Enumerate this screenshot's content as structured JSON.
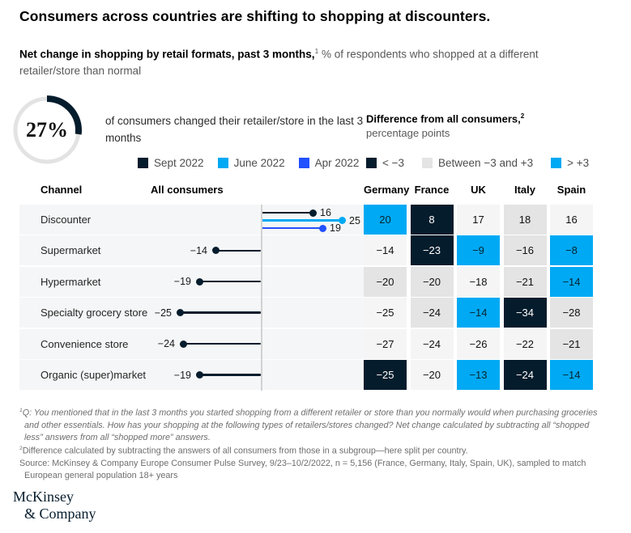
{
  "header": {
    "title": "Consumers across countries are shifting to shopping at discounters.",
    "subtitle_bold": "Net change in shopping by retail formats, past 3 months,",
    "subtitle_sup": "1",
    "subtitle_rest": " % of respondents who shopped at a different retailer/store than normal"
  },
  "stat": {
    "value": "27%",
    "fraction": 0.27,
    "description": "of consumers changed their retailer/store in the last 3 months"
  },
  "series_legend": [
    {
      "label": "Sept 2022",
      "color": "#051C2C"
    },
    {
      "label": "June 2022",
      "color": "#00A9F4"
    },
    {
      "label": "Apr 2022",
      "color": "#2251FF"
    }
  ],
  "diff_legend": {
    "title": "Difference from all consumers,",
    "sup": "2",
    "unit": "percentage points",
    "items": [
      {
        "label": "< −3",
        "color": "#051C2C"
      },
      {
        "label": "Between −3 and +3",
        "color": "#E4E4E4"
      },
      {
        "label": "> +3",
        "color": "#00A9F4"
      }
    ]
  },
  "table": {
    "headers": {
      "channel": "Channel",
      "all_consumers": "All consumers"
    },
    "countries": [
      "Germany",
      "France",
      "UK",
      "Italy",
      "Spain"
    ],
    "rows": [
      {
        "channel": "Discounter",
        "lollipops": [
          {
            "series": "Sept 2022",
            "value": 16,
            "color": "#051C2C"
          },
          {
            "series": "June 2022",
            "value": 25,
            "color": "#00A9F4"
          },
          {
            "series": "Apr 2022",
            "value": 19,
            "color": "#2251FF"
          }
        ],
        "cells": [
          {
            "value": "20",
            "tone": "blue"
          },
          {
            "value": "8",
            "tone": "dark"
          },
          {
            "value": "17",
            "tone": "light"
          },
          {
            "value": "18",
            "tone": "gray"
          },
          {
            "value": "16",
            "tone": "light"
          }
        ]
      },
      {
        "channel": "Supermarket",
        "lollipops": [
          {
            "series": "Sept 2022",
            "value": -14,
            "color": "#051C2C"
          }
        ],
        "cells": [
          {
            "value": "−14",
            "tone": "light"
          },
          {
            "value": "−23",
            "tone": "dark"
          },
          {
            "value": "−9",
            "tone": "blue"
          },
          {
            "value": "−16",
            "tone": "gray"
          },
          {
            "value": "−8",
            "tone": "blue"
          }
        ]
      },
      {
        "channel": "Hypermarket",
        "lollipops": [
          {
            "series": "Sept 2022",
            "value": -19,
            "color": "#051C2C"
          }
        ],
        "cells": [
          {
            "value": "−20",
            "tone": "gray"
          },
          {
            "value": "−20",
            "tone": "gray"
          },
          {
            "value": "−18",
            "tone": "light"
          },
          {
            "value": "−21",
            "tone": "gray"
          },
          {
            "value": "−14",
            "tone": "blue"
          }
        ]
      },
      {
        "channel": "Specialty grocery store",
        "lollipops": [
          {
            "series": "Sept 2022",
            "value": -25,
            "color": "#051C2C"
          }
        ],
        "cells": [
          {
            "value": "−25",
            "tone": "light"
          },
          {
            "value": "−24",
            "tone": "gray"
          },
          {
            "value": "−14",
            "tone": "blue"
          },
          {
            "value": "−34",
            "tone": "dark"
          },
          {
            "value": "−28",
            "tone": "gray"
          }
        ]
      },
      {
        "channel": "Convenience store",
        "lollipops": [
          {
            "series": "Sept 2022",
            "value": -24,
            "color": "#051C2C"
          }
        ],
        "cells": [
          {
            "value": "−27",
            "tone": "light"
          },
          {
            "value": "−24",
            "tone": "light"
          },
          {
            "value": "−26",
            "tone": "light"
          },
          {
            "value": "−22",
            "tone": "light"
          },
          {
            "value": "−21",
            "tone": "gray"
          }
        ]
      },
      {
        "channel": "Organic (super)market",
        "lollipops": [
          {
            "series": "Sept 2022",
            "value": -19,
            "color": "#051C2C"
          }
        ],
        "cells": [
          {
            "value": "−25",
            "tone": "dark"
          },
          {
            "value": "−20",
            "tone": "light"
          },
          {
            "value": "−13",
            "tone": "blue"
          },
          {
            "value": "−24",
            "tone": "dark"
          },
          {
            "value": "−14",
            "tone": "blue"
          }
        ]
      }
    ]
  },
  "chart_data": {
    "type": "table",
    "title": "Net change in shopping by retail formats, past 3 months, % of respondents who shopped at a different retailer/store than normal",
    "donut_pct": 27,
    "categories": [
      "Discounter",
      "Supermarket",
      "Hypermarket",
      "Specialty grocery store",
      "Convenience store",
      "Organic (super)market"
    ],
    "all_consumers_series": [
      {
        "name": "Sept 2022",
        "values": [
          16,
          -14,
          -19,
          -25,
          -24,
          -19
        ]
      },
      {
        "name": "June 2022",
        "values": [
          25,
          null,
          null,
          null,
          null,
          null
        ]
      },
      {
        "name": "Apr 2022",
        "values": [
          19,
          null,
          null,
          null,
          null,
          null
        ]
      }
    ],
    "country_series": [
      {
        "name": "Germany",
        "values": [
          20,
          -14,
          -20,
          -25,
          -27,
          -25
        ]
      },
      {
        "name": "France",
        "values": [
          8,
          -23,
          -20,
          -24,
          -24,
          -20
        ]
      },
      {
        "name": "UK",
        "values": [
          17,
          -9,
          -18,
          -14,
          -26,
          -13
        ]
      },
      {
        "name": "Italy",
        "values": [
          18,
          -16,
          -21,
          -34,
          -22,
          -24
        ]
      },
      {
        "name": "Spain",
        "values": [
          16,
          -8,
          -14,
          -28,
          -21,
          -14
        ]
      }
    ],
    "cell_highlight_rule": {
      "dark_navy": "< −3 vs all consumers",
      "light_gray": "between −3 and +3",
      "cyan": "> +3"
    }
  },
  "footnotes": {
    "note1_sup": "1",
    "note1": "Q: You mentioned that in the last 3 months you started shopping from a different retailer or store than you normally would when purchasing groceries and other essentials. How has your shopping at the following types of retailers/stores changed? Net change calculated by subtracting all “shopped less” answers from all “shopped more” answers.",
    "note2_sup": "2",
    "note2": "Difference calculated by subtracting the answers of all consumers from those in a subgroup—here split per country.",
    "source": "Source: McKinsey & Company Europe Consumer Pulse Survey, 9/23–10/2/2022, n = 5,156 (France, Germany, Italy, Spain, UK), sampled to match European general population 18+ years"
  },
  "logo": {
    "line1": "McKinsey",
    "line2": "& Company"
  }
}
